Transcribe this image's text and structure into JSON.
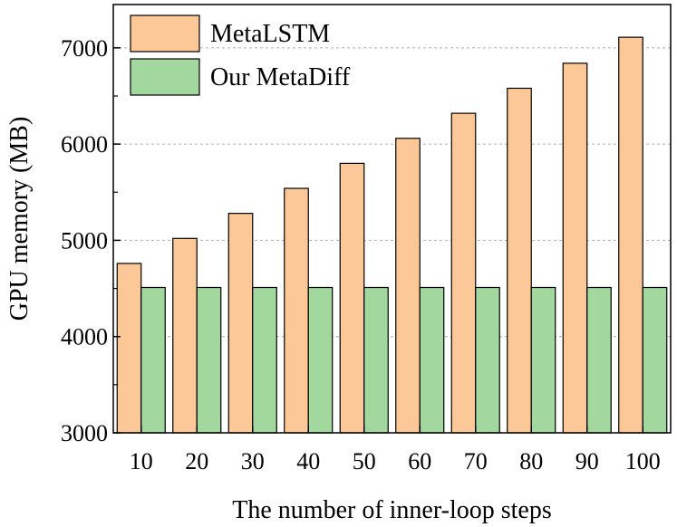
{
  "chart_data": {
    "type": "bar",
    "categories": [
      "10",
      "20",
      "30",
      "40",
      "50",
      "60",
      "70",
      "80",
      "90",
      "100"
    ],
    "series": [
      {
        "name": "MetaLSTM",
        "color": "#FDC898",
        "values": [
          4760,
          5020,
          5280,
          5540,
          5800,
          6060,
          6320,
          6580,
          6840,
          7110
        ]
      },
      {
        "name": "Our MetaDiff",
        "color": "#A2D89E",
        "values": [
          4510,
          4510,
          4510,
          4510,
          4510,
          4510,
          4510,
          4510,
          4510,
          4510
        ]
      }
    ],
    "xlabel": "The number of inner-loop steps",
    "ylabel": "GPU memory (MB)",
    "ylim": [
      3000,
      7450
    ],
    "yticks": [
      3000,
      4000,
      5000,
      6000,
      7000
    ],
    "grid": true,
    "legend": "top-left"
  }
}
